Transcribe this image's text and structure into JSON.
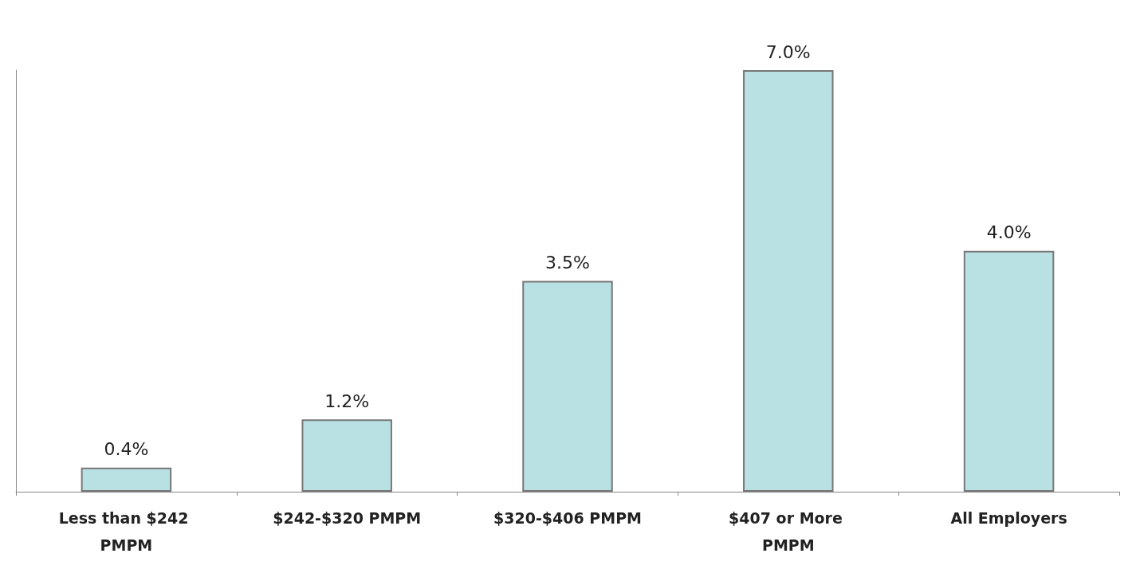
{
  "chart_data": {
    "type": "bar",
    "categories": [
      "Less than $242 PMPM",
      "$242-$320 PMPM",
      "$320-$406 PMPM",
      "$407 or More PMPM",
      "All Employers"
    ],
    "values": [
      0.4,
      1.2,
      3.5,
      7.0,
      4.0
    ],
    "value_labels": [
      "0.4%",
      "1.2%",
      "3.5%",
      "7.0%",
      "4.0%"
    ],
    "color": "#b9e0e3",
    "grid": false,
    "tick_labels": "x"
  }
}
